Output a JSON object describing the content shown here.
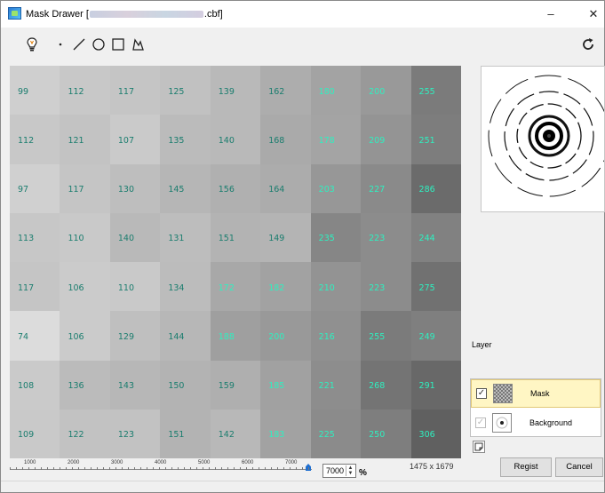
{
  "window": {
    "title_prefix": "Mask Drawer [",
    "title_suffix": ".cbf]",
    "minimize_label": "–",
    "close_label": "✕"
  },
  "toolbar": {
    "tools": [
      {
        "name": "bulb-icon"
      },
      {
        "name": "point-tool-icon"
      },
      {
        "name": "line-tool-icon"
      },
      {
        "name": "circle-tool-icon"
      },
      {
        "name": "rectangle-tool-icon"
      },
      {
        "name": "polygon-tool-icon"
      }
    ],
    "rotate_icon": "rotate-icon"
  },
  "pixel_grid": {
    "rows": [
      [
        99,
        112,
        117,
        125,
        139,
        162,
        180,
        200,
        255
      ],
      [
        112,
        121,
        107,
        135,
        140,
        168,
        178,
        209,
        251
      ],
      [
        97,
        117,
        130,
        145,
        156,
        164,
        203,
        227,
        286
      ],
      [
        113,
        110,
        140,
        131,
        151,
        149,
        235,
        223,
        244
      ],
      [
        117,
        106,
        110,
        134,
        172,
        182,
        210,
        223,
        275
      ],
      [
        74,
        106,
        129,
        144,
        188,
        200,
        216,
        255,
        249
      ],
      [
        108,
        136,
        143,
        150,
        159,
        185,
        221,
        268,
        291
      ],
      [
        109,
        122,
        123,
        151,
        142,
        183,
        225,
        250,
        306
      ]
    ],
    "text_colors": {
      "dark": "#1a7d6e",
      "bright": "#2ef0c0"
    }
  },
  "scale": {
    "ticks": [
      "1000",
      "2000",
      "3000",
      "4000",
      "5000",
      "6000",
      "7000"
    ],
    "zoom_value": "7000",
    "zoom_unit": "%",
    "spin_up": "▲",
    "spin_down": "▼"
  },
  "image_dims": "1475 x 1679",
  "layers": {
    "heading": "Layer",
    "items": [
      {
        "name": "Mask",
        "checked": true,
        "selected": true,
        "check_glyph": "✓"
      },
      {
        "name": "Background",
        "checked": true,
        "selected": false,
        "check_glyph": "✓"
      }
    ]
  },
  "buttons": {
    "regist": "Regist",
    "cancel": "Cancel"
  }
}
